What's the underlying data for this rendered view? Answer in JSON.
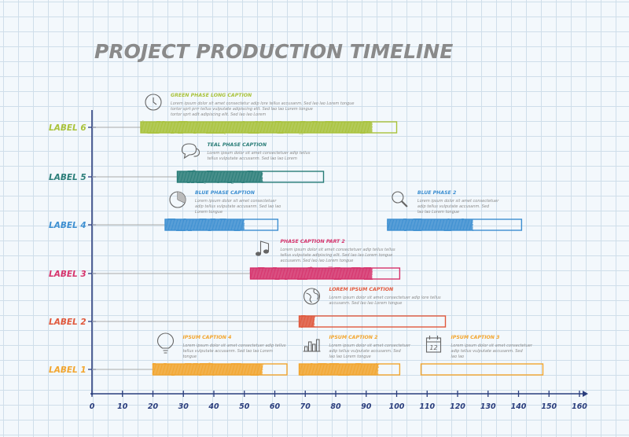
{
  "chart_data": {
    "type": "gantt",
    "title": "PROJECT PRODUCTION TIMELINE",
    "xlim": [
      0,
      160
    ],
    "x_ticks": [
      0,
      10,
      20,
      30,
      40,
      50,
      60,
      70,
      80,
      90,
      100,
      110,
      120,
      130,
      140,
      150,
      160
    ],
    "grid": true,
    "rows": [
      "LABEL 6",
      "LABEL 5",
      "LABEL 4",
      "LABEL 3",
      "LABEL 2",
      "LABEL 1"
    ],
    "colors": {
      "LABEL 6": "#a9c23a",
      "LABEL 5": "#2a7d78",
      "LABEL 4": "#3d8fd1",
      "LABEL 3": "#d6336c",
      "LABEL 2": "#e0583c",
      "LABEL 1": "#f2a52e",
      "axis": "#2a3d7c",
      "title": "#888888",
      "text": "#8a8a8a"
    },
    "tasks": [
      {
        "row": "LABEL 6",
        "start": 16,
        "end": 100,
        "progress_end": 92,
        "caption": "GREEN PHASE LONG CAPTION",
        "icon": "clock-icon",
        "text": [
          "Lorem ipsum dolor sit amet consectetur adip lore tellus accusanm. Sed lao lao Lorem tongue",
          "tortor sprt prrr tellus vulputate adipiscing elit. Sed lao lao Lorem tongue",
          "tortor sprt adit adipiscing elit. Sed lao lao Lorem"
        ]
      },
      {
        "row": "LABEL 5",
        "start": 28,
        "end": 76,
        "progress_end": 56,
        "caption": "TEAL PHASE CAPTION",
        "icon": "speech-bubbles-icon",
        "text": [
          "Lorem ipsum dolor sit amet consectetuer adip tellus",
          "tellus vulputate accusanm. Sed lao lao Lorem"
        ]
      },
      {
        "row": "LABEL 4",
        "start": 24,
        "end": 61,
        "progress_end": 50,
        "caption": "BLUE PHASE CAPTION",
        "icon": "pie-chart-icon",
        "text": [
          "Lorem ipsum dolor sit amet consectetuer",
          "adip tellus vulputate accusanm. Sed lao lao",
          "Lorem tongue"
        ]
      },
      {
        "row": "LABEL 4",
        "start": 97,
        "end": 141,
        "progress_end": 125,
        "caption": "BLUE PHASE 2",
        "icon": "magnifier-icon",
        "text": [
          "Lorem ipsum dolor sit amet consectetuer",
          "adip tellus vulputate accusanm. Sed",
          "lao lao Lorem tongue"
        ]
      },
      {
        "row": "LABEL 3",
        "start": 52,
        "end": 101,
        "progress_end": 92,
        "caption": "PHASE CAPTION PART 2",
        "icon": "music-note-icon",
        "text": [
          "Lorem ipsum dolor sit amet consectetuer adip tellus tellus",
          "tellus vulputate adipiscing elit. Sed lao lao Lorem tongue",
          "accusanm. Sed lao lao Lorem tongue"
        ]
      },
      {
        "row": "LABEL 2",
        "start": 68,
        "end": 116,
        "progress_end": 73,
        "caption": "LOREM IPSUM CAPTION",
        "icon": "globe-icon",
        "text": [
          "Lorem ipsum dolor sit amet consectetuer adip lore tellus",
          "accusanm. Sed lao lao Lorem tongue"
        ]
      },
      {
        "row": "LABEL 1",
        "start": 20,
        "end": 64,
        "progress_end": 56,
        "caption": "IPSUM CAPTION 4",
        "icon": "lightbulb-icon",
        "text": [
          "Lorem ipsum dolor sit amet consectetuer adip tellus",
          "tellus vulputate accusanm. Sed lao lao Lorem",
          "tongue"
        ]
      },
      {
        "row": "LABEL 1",
        "start": 68,
        "end": 101,
        "progress_end": 94,
        "caption": "IPSUM CAPTION 2",
        "icon": "bar-chart-icon",
        "text": [
          "Lorem ipsum dolor sit amet consectetuer",
          "adip tellus vulputate accusanm. Sed",
          "lao lao Lorem tongue"
        ]
      },
      {
        "row": "LABEL 1",
        "start": 108,
        "end": 148,
        "progress_end": 108,
        "caption": "IPSUM CAPTION 3",
        "icon": "calendar-icon",
        "icon_text": "12",
        "text": [
          "Lorem ipsum dolor sit amet consectetuer",
          "adip tellus vulputate accusanm. Sed",
          "lao lao"
        ]
      }
    ]
  }
}
